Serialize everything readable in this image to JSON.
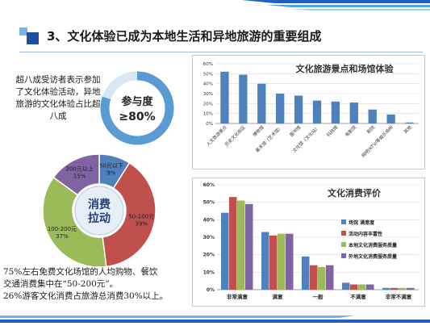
{
  "slide": {
    "title": "3、文化体验已成为本地生活和异地旅游的重要组成",
    "intro": "超八成受访者表示参加了文化体验活动，异地旅游的文化体验占比超八成",
    "footer": [
      "75%左右免费文化场馆的人均购物、餐饮",
      "交通消费集中在“50-200元”。",
      "26%游客文化消费占旅游总消费30%以上。"
    ]
  },
  "participation": {
    "label": "参与度",
    "value_text": "≥80%",
    "value": 80,
    "color": "#5b9bd5"
  },
  "chart_data": [
    {
      "type": "pie",
      "center_label": "消费\n拉动",
      "categories": [
        "50元以下",
        "50-100元",
        "100-200元",
        "200元以上"
      ],
      "values": [
        9,
        39,
        37,
        15
      ],
      "labels": [
        "50元以下\n9%",
        "50-100元\n39%",
        "100-200元\n37%",
        "200元以上\n15%"
      ],
      "colors": [
        "#4f81bd",
        "#c0504d",
        "#9bbb59",
        "#8064a2"
      ]
    },
    {
      "type": "bar",
      "title": "文化旅游景点和场馆体验",
      "categories": [
        "人文旅游景点",
        "历史文化街区",
        "博物馆",
        "美术馆（艺术馆）",
        "图书馆",
        "文化馆（文化站）",
        "科技馆",
        "电影院",
        "剧院",
        "网吧/KTV/等娱乐场所",
        "其他"
      ],
      "values": [
        52,
        49,
        40,
        30,
        28,
        23,
        22,
        21,
        14,
        9,
        1
      ],
      "ylim": [
        0,
        60
      ],
      "yticks": [
        "0%",
        "10%",
        "20%",
        "30%",
        "40%",
        "50%",
        "60%"
      ],
      "color": "#4f81bd"
    },
    {
      "type": "bar",
      "title": "文化消费评价",
      "categories": [
        "非常满意",
        "满意",
        "一般",
        "不满意",
        "非常不满意"
      ],
      "series": [
        {
          "name": "场馆 满意度",
          "values": [
            44,
            33,
            19,
            4,
            1
          ],
          "color": "#4f81bd"
        },
        {
          "name": "活动内容丰富性",
          "values": [
            53,
            31,
            14,
            3,
            1
          ],
          "color": "#c0504d"
        },
        {
          "name": "本地文化消费服务质量",
          "values": [
            51,
            32,
            13,
            3,
            1
          ],
          "color": "#9bbb59"
        },
        {
          "name": "外地文化消费服务质量",
          "values": [
            49,
            32,
            14,
            3,
            1
          ],
          "color": "#8064a2"
        }
      ],
      "ylim": [
        0,
        60
      ],
      "yticks": [
        "0%",
        "10%",
        "20%",
        "30%",
        "40%",
        "50%",
        "60%"
      ]
    }
  ]
}
